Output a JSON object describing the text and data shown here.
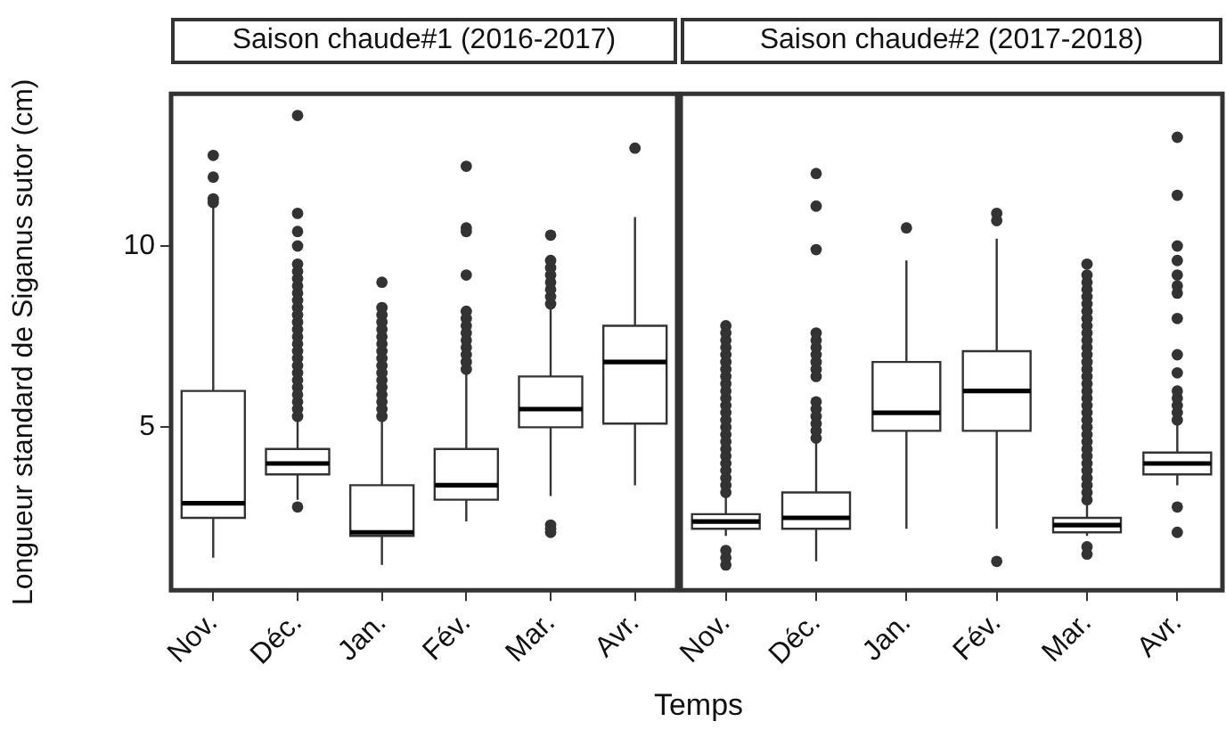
{
  "chart_data": [
    {
      "type": "box",
      "title": "Saison chaude#1 (2016-2017)",
      "ylabel": "Longueur standard de Siganus sutor (cm)",
      "xlabel": "Temps",
      "categories": [
        "Nov.",
        "Déc.",
        "Jan.",
        "Fév.",
        "Mar.",
        "Avr."
      ],
      "ylim": [
        0.5,
        14.2
      ],
      "yticks": [
        5,
        10
      ],
      "grid": false,
      "color": "#ffffff",
      "boxes": [
        {
          "low": 1.4,
          "q1": 2.5,
          "median": 2.9,
          "q3": 6.0,
          "high": 11.1,
          "outliers": [
            11.2,
            11.3,
            11.9,
            12.5
          ]
        },
        {
          "low": 3.0,
          "q1": 3.7,
          "median": 4.0,
          "q3": 4.4,
          "high": 5.2,
          "outliers": [
            2.8,
            5.3,
            5.5,
            5.7,
            5.9,
            6.1,
            6.3,
            6.5,
            6.7,
            6.9,
            7.1,
            7.3,
            7.5,
            7.7,
            7.9,
            8.1,
            8.3,
            8.5,
            8.7,
            8.9,
            9.1,
            9.3,
            9.5,
            10.0,
            10.4,
            10.9,
            13.6
          ]
        },
        {
          "low": 1.2,
          "q1": 2.0,
          "median": 2.1,
          "q3": 3.4,
          "high": 5.2,
          "outliers": [
            5.3,
            5.5,
            5.7,
            5.9,
            6.1,
            6.3,
            6.5,
            6.7,
            6.9,
            7.1,
            7.3,
            7.5,
            7.7,
            7.9,
            8.1,
            8.3,
            9.0
          ]
        },
        {
          "low": 2.4,
          "q1": 3.0,
          "median": 3.4,
          "q3": 4.4,
          "high": 6.5,
          "outliers": [
            6.6,
            6.8,
            7.0,
            7.2,
            7.4,
            7.6,
            7.8,
            8.0,
            8.2,
            9.2,
            10.4,
            10.5,
            12.2
          ]
        },
        {
          "low": 3.1,
          "q1": 5.0,
          "median": 5.5,
          "q3": 6.4,
          "high": 8.3,
          "outliers": [
            2.1,
            2.2,
            2.3,
            8.4,
            8.6,
            8.8,
            9.0,
            9.2,
            9.4,
            9.6,
            10.3
          ]
        },
        {
          "low": 3.4,
          "q1": 5.1,
          "median": 6.8,
          "q3": 7.8,
          "high": 10.8,
          "outliers": [
            12.7
          ]
        }
      ]
    },
    {
      "type": "box",
      "title": "Saison chaude#2 (2017-2018)",
      "categories": [
        "Nov.",
        "Déc.",
        "Jan.",
        "Fév.",
        "Mar.",
        "Avr."
      ],
      "ylim": [
        0.5,
        14.2
      ],
      "grid": false,
      "tick_labels": "x",
      "color": "#ffffff",
      "boxes": [
        {
          "low": 2.0,
          "q1": 2.2,
          "median": 2.4,
          "q3": 2.6,
          "high": 3.1,
          "outliers": [
            1.2,
            1.4,
            1.6,
            3.2,
            3.4,
            3.6,
            3.8,
            4.0,
            4.2,
            4.4,
            4.6,
            4.8,
            5.0,
            5.2,
            5.4,
            5.6,
            5.8,
            6.0,
            6.2,
            6.4,
            6.6,
            6.8,
            7.0,
            7.2,
            7.4,
            7.6,
            7.8
          ]
        },
        {
          "low": 1.3,
          "q1": 2.2,
          "median": 2.5,
          "q3": 3.2,
          "high": 4.6,
          "outliers": [
            4.7,
            4.9,
            5.1,
            5.3,
            5.5,
            5.7,
            6.4,
            6.6,
            6.8,
            7.0,
            7.2,
            7.4,
            7.6,
            9.9,
            11.1,
            12.0
          ]
        },
        {
          "low": 2.2,
          "q1": 4.9,
          "median": 5.4,
          "q3": 6.8,
          "high": 9.6,
          "outliers": [
            10.5
          ]
        },
        {
          "low": 2.2,
          "q1": 4.9,
          "median": 6.0,
          "q3": 7.1,
          "high": 10.2,
          "outliers": [
            1.3,
            10.7,
            10.9
          ]
        },
        {
          "low": 2.0,
          "q1": 2.1,
          "median": 2.3,
          "q3": 2.5,
          "high": 2.9,
          "outliers": [
            1.5,
            1.7,
            3.0,
            3.2,
            3.4,
            3.6,
            3.8,
            4.0,
            4.2,
            4.4,
            4.6,
            4.8,
            5.0,
            5.2,
            5.4,
            5.6,
            5.8,
            6.0,
            6.2,
            6.4,
            6.6,
            6.8,
            7.0,
            7.2,
            7.4,
            7.6,
            7.8,
            8.0,
            8.2,
            8.4,
            8.6,
            8.8,
            9.0,
            9.2,
            9.5
          ]
        },
        {
          "low": 3.4,
          "q1": 3.7,
          "median": 4.0,
          "q3": 4.3,
          "high": 5.1,
          "outliers": [
            2.1,
            2.8,
            5.2,
            5.4,
            5.6,
            5.8,
            6.0,
            6.5,
            7.0,
            8.0,
            8.7,
            8.9,
            9.2,
            9.6,
            10.0,
            11.4,
            13.0
          ]
        }
      ]
    }
  ]
}
